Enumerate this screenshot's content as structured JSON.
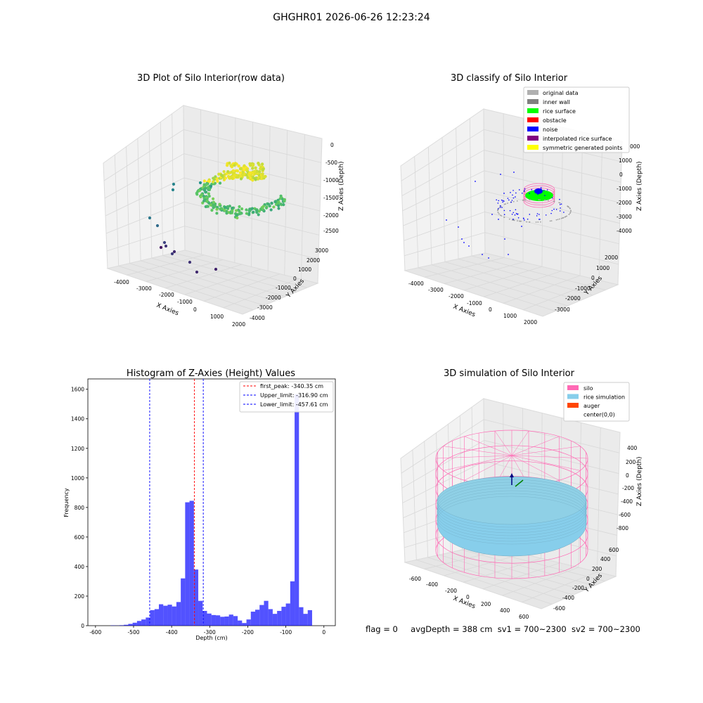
{
  "suptitle": "GHGHR01 2026-06-26 12:23:24",
  "panels": {
    "raw": {
      "title": "3D Plot of Silo Interior(row data)",
      "xlabel": "X Axies",
      "ylabel": "Y Axies",
      "zlabel": "Z Axies (Depth)",
      "x_ticks": [
        "-4000",
        "-3000",
        "-2000",
        "-1000",
        "0",
        "1000",
        "2000"
      ],
      "y_ticks": [
        "3000",
        "2000",
        "1000",
        "0",
        "-1000",
        "-2000",
        "-3000",
        "-4000"
      ],
      "z_ticks": [
        "0",
        "-500",
        "-1000",
        "-1500",
        "-2000",
        "-2500"
      ]
    },
    "classify": {
      "title": "3D classify of Silo Interior",
      "xlabel": "X Axies",
      "ylabel": "Y Axies",
      "zlabel": "Z Axies (Depth)",
      "x_ticks": [
        "-4000",
        "-3000",
        "-2000",
        "-1000",
        "0",
        "1000",
        "2000"
      ],
      "y_ticks": [
        "2000",
        "1000",
        "0",
        "-1000",
        "-2000",
        "-3000"
      ],
      "z_ticks": [
        "2000",
        "1000",
        "0",
        "-1000",
        "-2000",
        "-3000",
        "-4000"
      ],
      "z_partial_tick": "000",
      "legend": [
        {
          "label": "original data",
          "color": "#b0b0b0"
        },
        {
          "label": "inner wall",
          "color": "#808080"
        },
        {
          "label": "rice surface",
          "color": "#00ff00"
        },
        {
          "label": "obstacle",
          "color": "#ff0000"
        },
        {
          "label": "noise",
          "color": "#0000ff"
        },
        {
          "label": "interpolated rice surface",
          "color": "#800080"
        },
        {
          "label": "symmetric generated points",
          "color": "#ffff00"
        }
      ]
    },
    "histogram": {
      "title": "Histogram of Z-Axies (Height) Values",
      "legend": [
        {
          "label": "first_peak: -340.35 cm",
          "color": "#ff0000"
        },
        {
          "label": "Upper_limit: -316.90 cm",
          "color": "#0000ff"
        },
        {
          "label": "Lower_limit: -457.61 cm",
          "color": "#0000ff"
        }
      ]
    },
    "simulation": {
      "title": "3D simulation of Silo Interior",
      "xlabel": "X Axies",
      "ylabel": "Y Axies",
      "zlabel": "Z Axies (Depth)",
      "x_ticks": [
        "-600",
        "-400",
        "-200",
        "0",
        "200",
        "400",
        "600"
      ],
      "y_ticks": [
        "600",
        "400",
        "200",
        "0",
        "-200",
        "-400",
        "-600"
      ],
      "z_ticks": [
        "400",
        "200",
        "0",
        "-200",
        "-400",
        "-600",
        "-800"
      ],
      "legend": [
        {
          "label": "silo",
          "color": "#ff69b4"
        },
        {
          "label": "rice simulation",
          "color": "#87ceeb"
        },
        {
          "label": "auger",
          "color": "#ff4500"
        },
        {
          "label": "center(0,0)",
          "color": "#ffffff"
        }
      ]
    }
  },
  "stats": {
    "flag": "flag = 0",
    "avg_depth": "avgDepth = 388 cm",
    "sv1": "sv1 = 700~2300",
    "sv2": "sv2 = 700~2300"
  },
  "chart_data": [
    {
      "type": "histogram",
      "title": "Histogram of Z-Axies (Height) Values",
      "xlabel": "Depth (cm)",
      "ylabel": "Frequency",
      "xlim": [
        -620,
        30
      ],
      "ylim": [
        0,
        1670
      ],
      "x_ticks": [
        -600,
        -500,
        -400,
        -300,
        -200,
        -100,
        0
      ],
      "y_ticks": [
        0,
        200,
        400,
        600,
        800,
        1000,
        1200,
        1400,
        1600
      ],
      "bar_color": "#0000ff",
      "bin_start": -560,
      "bin_width": 11.5,
      "values": [
        2,
        1,
        3,
        6,
        12,
        20,
        32,
        42,
        55,
        105,
        112,
        145,
        135,
        142,
        130,
        160,
        320,
        835,
        845,
        380,
        168,
        100,
        82,
        72,
        70,
        60,
        62,
        75,
        65,
        35,
        18,
        42,
        95,
        108,
        140,
        168,
        112,
        80,
        100,
        128,
        150,
        300,
        1565,
        125,
        80,
        105
      ],
      "vlines": [
        {
          "x": -340.35,
          "label": "first_peak: -340.35 cm",
          "color": "#ff0000"
        },
        {
          "x": -316.9,
          "label": "Upper_limit: -316.90 cm",
          "color": "#0000ff"
        },
        {
          "x": -457.61,
          "label": "Lower_limit: -457.61 cm",
          "color": "#0000ff"
        }
      ],
      "legend_position": "top-right",
      "grid": false
    }
  ]
}
